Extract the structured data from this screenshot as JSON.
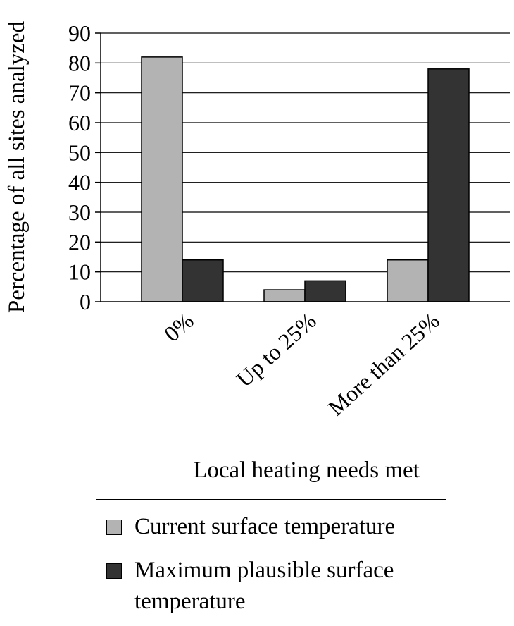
{
  "chart_data": {
    "type": "bar",
    "ylabel": "Percentage of all sites analyzed",
    "xlabel": "Local heating needs met",
    "categories": [
      "0%",
      "Up to 25%",
      "More than 25%"
    ],
    "yticks": [
      "0",
      "10",
      "20",
      "30",
      "40",
      "50",
      "60",
      "70",
      "80",
      "90"
    ],
    "ylim": [
      0,
      90
    ],
    "grid": true,
    "legend_position": "bottom",
    "series": [
      {
        "name": "Current surface temperature",
        "values": [
          82,
          4,
          14
        ],
        "color": "#b3b3b3"
      },
      {
        "name": "Maximum plausible surface temperature",
        "values": [
          14,
          7,
          78
        ],
        "color": "#333333"
      }
    ]
  }
}
